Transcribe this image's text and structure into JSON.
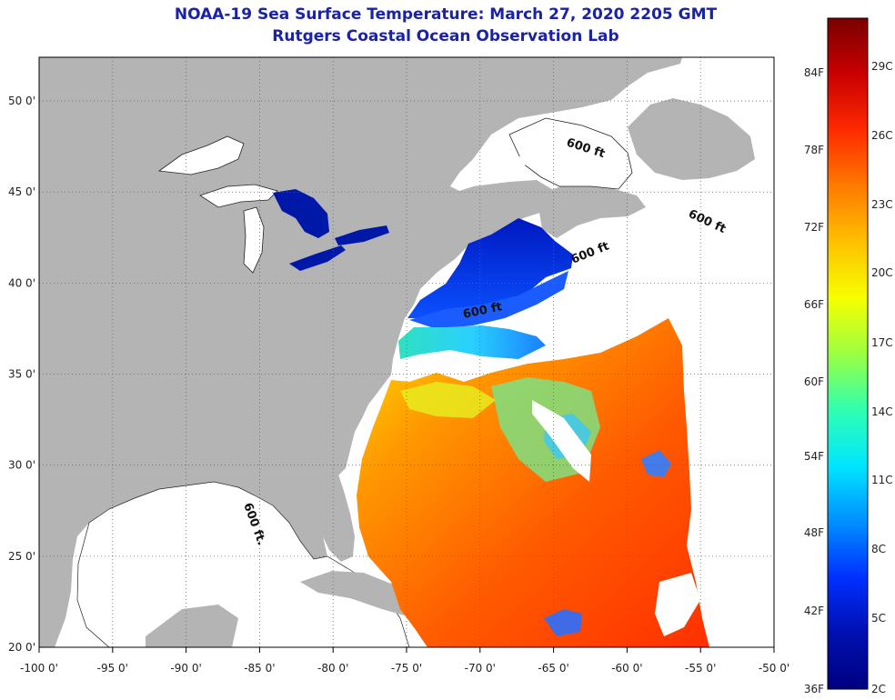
{
  "title": {
    "line1": "NOAA-19 Sea Surface Temperature:  March 27, 2020 2205 GMT",
    "line2": "Rutgers Coastal Ocean Observation Lab"
  },
  "axes": {
    "lon_labels": [
      "-100 0'",
      "-95 0'",
      "-90 0'",
      "-85 0'",
      "-80 0'",
      "-75 0'",
      "-70 0'",
      "-65 0'",
      "-60 0'",
      "-55 0'",
      "-50 0'"
    ],
    "lat_labels": [
      "50 0'",
      "45 0'",
      "40 0'",
      "35 0'",
      "30 0'",
      "25 0'",
      "20 0'"
    ],
    "lon_values": [
      -100,
      -95,
      -90,
      -85,
      -80,
      -75,
      -70,
      -65,
      -60,
      -55,
      -50
    ],
    "lat_values": [
      50,
      45,
      40,
      35,
      30,
      25,
      20
    ]
  },
  "contours": {
    "label": "600 ft",
    "label_alt": "600 ft."
  },
  "colorbar": {
    "f_labels": [
      "84F",
      "78F",
      "72F",
      "66F",
      "60F",
      "54F",
      "48F",
      "42F",
      "36F"
    ],
    "c_labels": [
      "29C",
      "26C",
      "23C",
      "20C",
      "17C",
      "14C",
      "11C",
      "8C",
      "5C",
      "2C"
    ],
    "stops": [
      "#7a0000",
      "#c80000",
      "#ff2a00",
      "#ff7a00",
      "#ffc000",
      "#f6ff00",
      "#9cff40",
      "#30ffb0",
      "#00e6ff",
      "#0090ff",
      "#0030ff",
      "#0010b0",
      "#000080"
    ]
  },
  "colors": {
    "land": "#b4b4b4",
    "water_nodata": "#ffffff",
    "grid": "#555555"
  }
}
